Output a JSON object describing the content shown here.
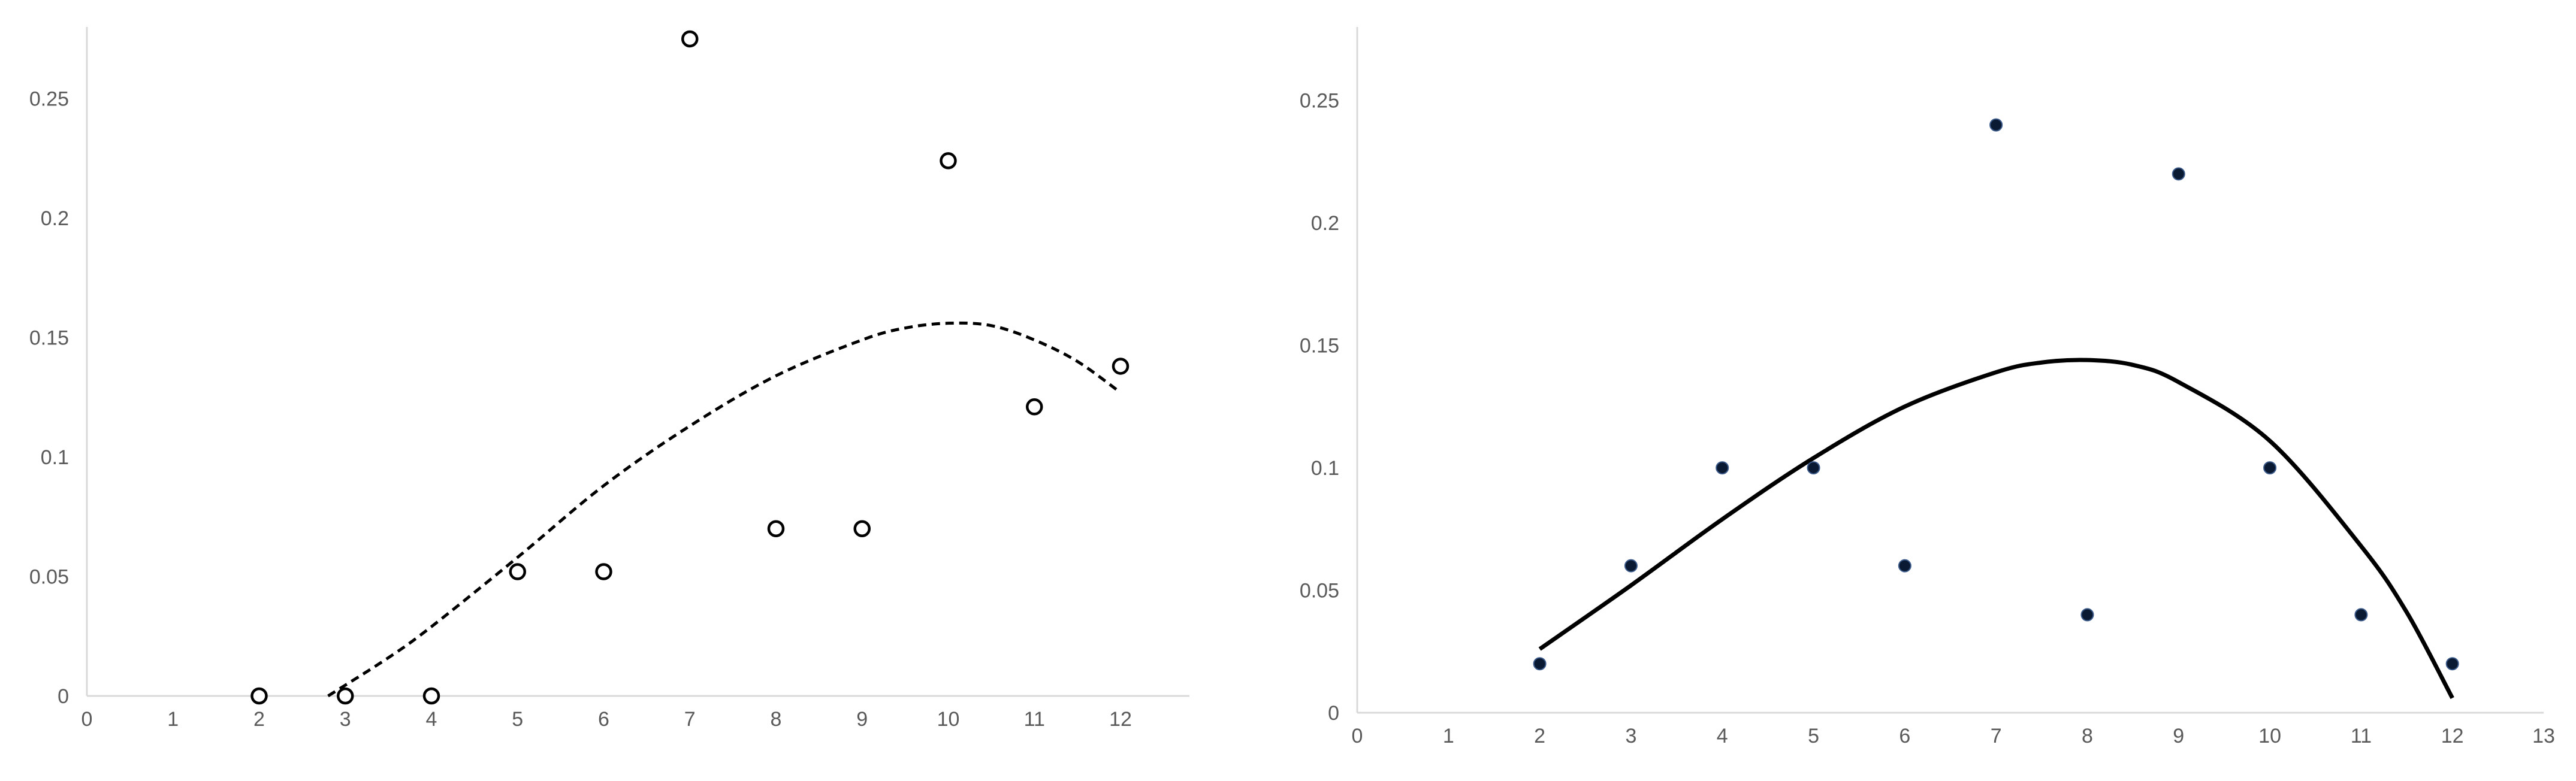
{
  "chart_data": [
    {
      "type": "scatter",
      "title": "",
      "xlabel": "",
      "ylabel": "",
      "xlim": [
        0,
        12.8
      ],
      "ylim": [
        0,
        0.28
      ],
      "x_ticks": [
        "0",
        "1",
        "2",
        "3",
        "4",
        "5",
        "6",
        "7",
        "8",
        "9",
        "10",
        "11",
        "12"
      ],
      "y_ticks": [
        "0",
        "0.05",
        "0.1",
        "0.15",
        "0.2",
        "0.25"
      ],
      "grid": false,
      "legend": "none",
      "marker": "open-circle",
      "series": [
        {
          "x": [
            2,
            3,
            4,
            5,
            6,
            7,
            8,
            9,
            10,
            11,
            12
          ],
          "y": [
            0,
            0,
            0,
            0.052,
            0.052,
            0.275,
            0.07,
            0.07,
            0.224,
            0.121,
            0.138
          ]
        }
      ],
      "trendline": {
        "style": "dashed",
        "x": [
          2.8,
          3.5,
          4,
          5,
          6,
          7,
          8,
          9,
          9.5,
          10,
          10.5,
          11,
          11.5,
          12
        ],
        "y": [
          0,
          0.016,
          0.029,
          0.058,
          0.088,
          0.113,
          0.134,
          0.149,
          0.154,
          0.156,
          0.155,
          0.149,
          0.14,
          0.127
        ]
      },
      "colors": {
        "axis": "#d9d9d9",
        "tick_text": "#595959",
        "marker": "#000000",
        "trend": "#000000"
      }
    },
    {
      "type": "scatter",
      "title": "",
      "xlabel": "",
      "ylabel": "",
      "xlim": [
        0,
        13
      ],
      "ylim": [
        0,
        0.28
      ],
      "x_ticks": [
        "0",
        "1",
        "2",
        "3",
        "4",
        "5",
        "6",
        "7",
        "8",
        "9",
        "10",
        "11",
        "12",
        "13"
      ],
      "y_ticks": [
        "0",
        "0.05",
        "0.1",
        "0.15",
        "0.2",
        "0.25"
      ],
      "grid": false,
      "legend": "none",
      "marker": "filled-dot",
      "series": [
        {
          "x": [
            2,
            3,
            4,
            5,
            6,
            7,
            8,
            9,
            10,
            11,
            12
          ],
          "y": [
            0.02,
            0.06,
            0.1,
            0.1,
            0.06,
            0.24,
            0.04,
            0.22,
            0.1,
            0.04,
            0.02
          ]
        }
      ],
      "trendline": {
        "style": "solid",
        "x": [
          2,
          3,
          4,
          5,
          6,
          7,
          7.5,
          8,
          8.5,
          9,
          10,
          11,
          11.5,
          12
        ],
        "y": [
          0.026,
          0.052,
          0.079,
          0.104,
          0.125,
          0.139,
          0.143,
          0.144,
          0.142,
          0.135,
          0.111,
          0.068,
          0.041,
          0.006
        ]
      },
      "colors": {
        "axis": "#d9d9d9",
        "tick_text": "#595959",
        "marker": "#0a1a33",
        "trend": "#000000"
      }
    }
  ]
}
